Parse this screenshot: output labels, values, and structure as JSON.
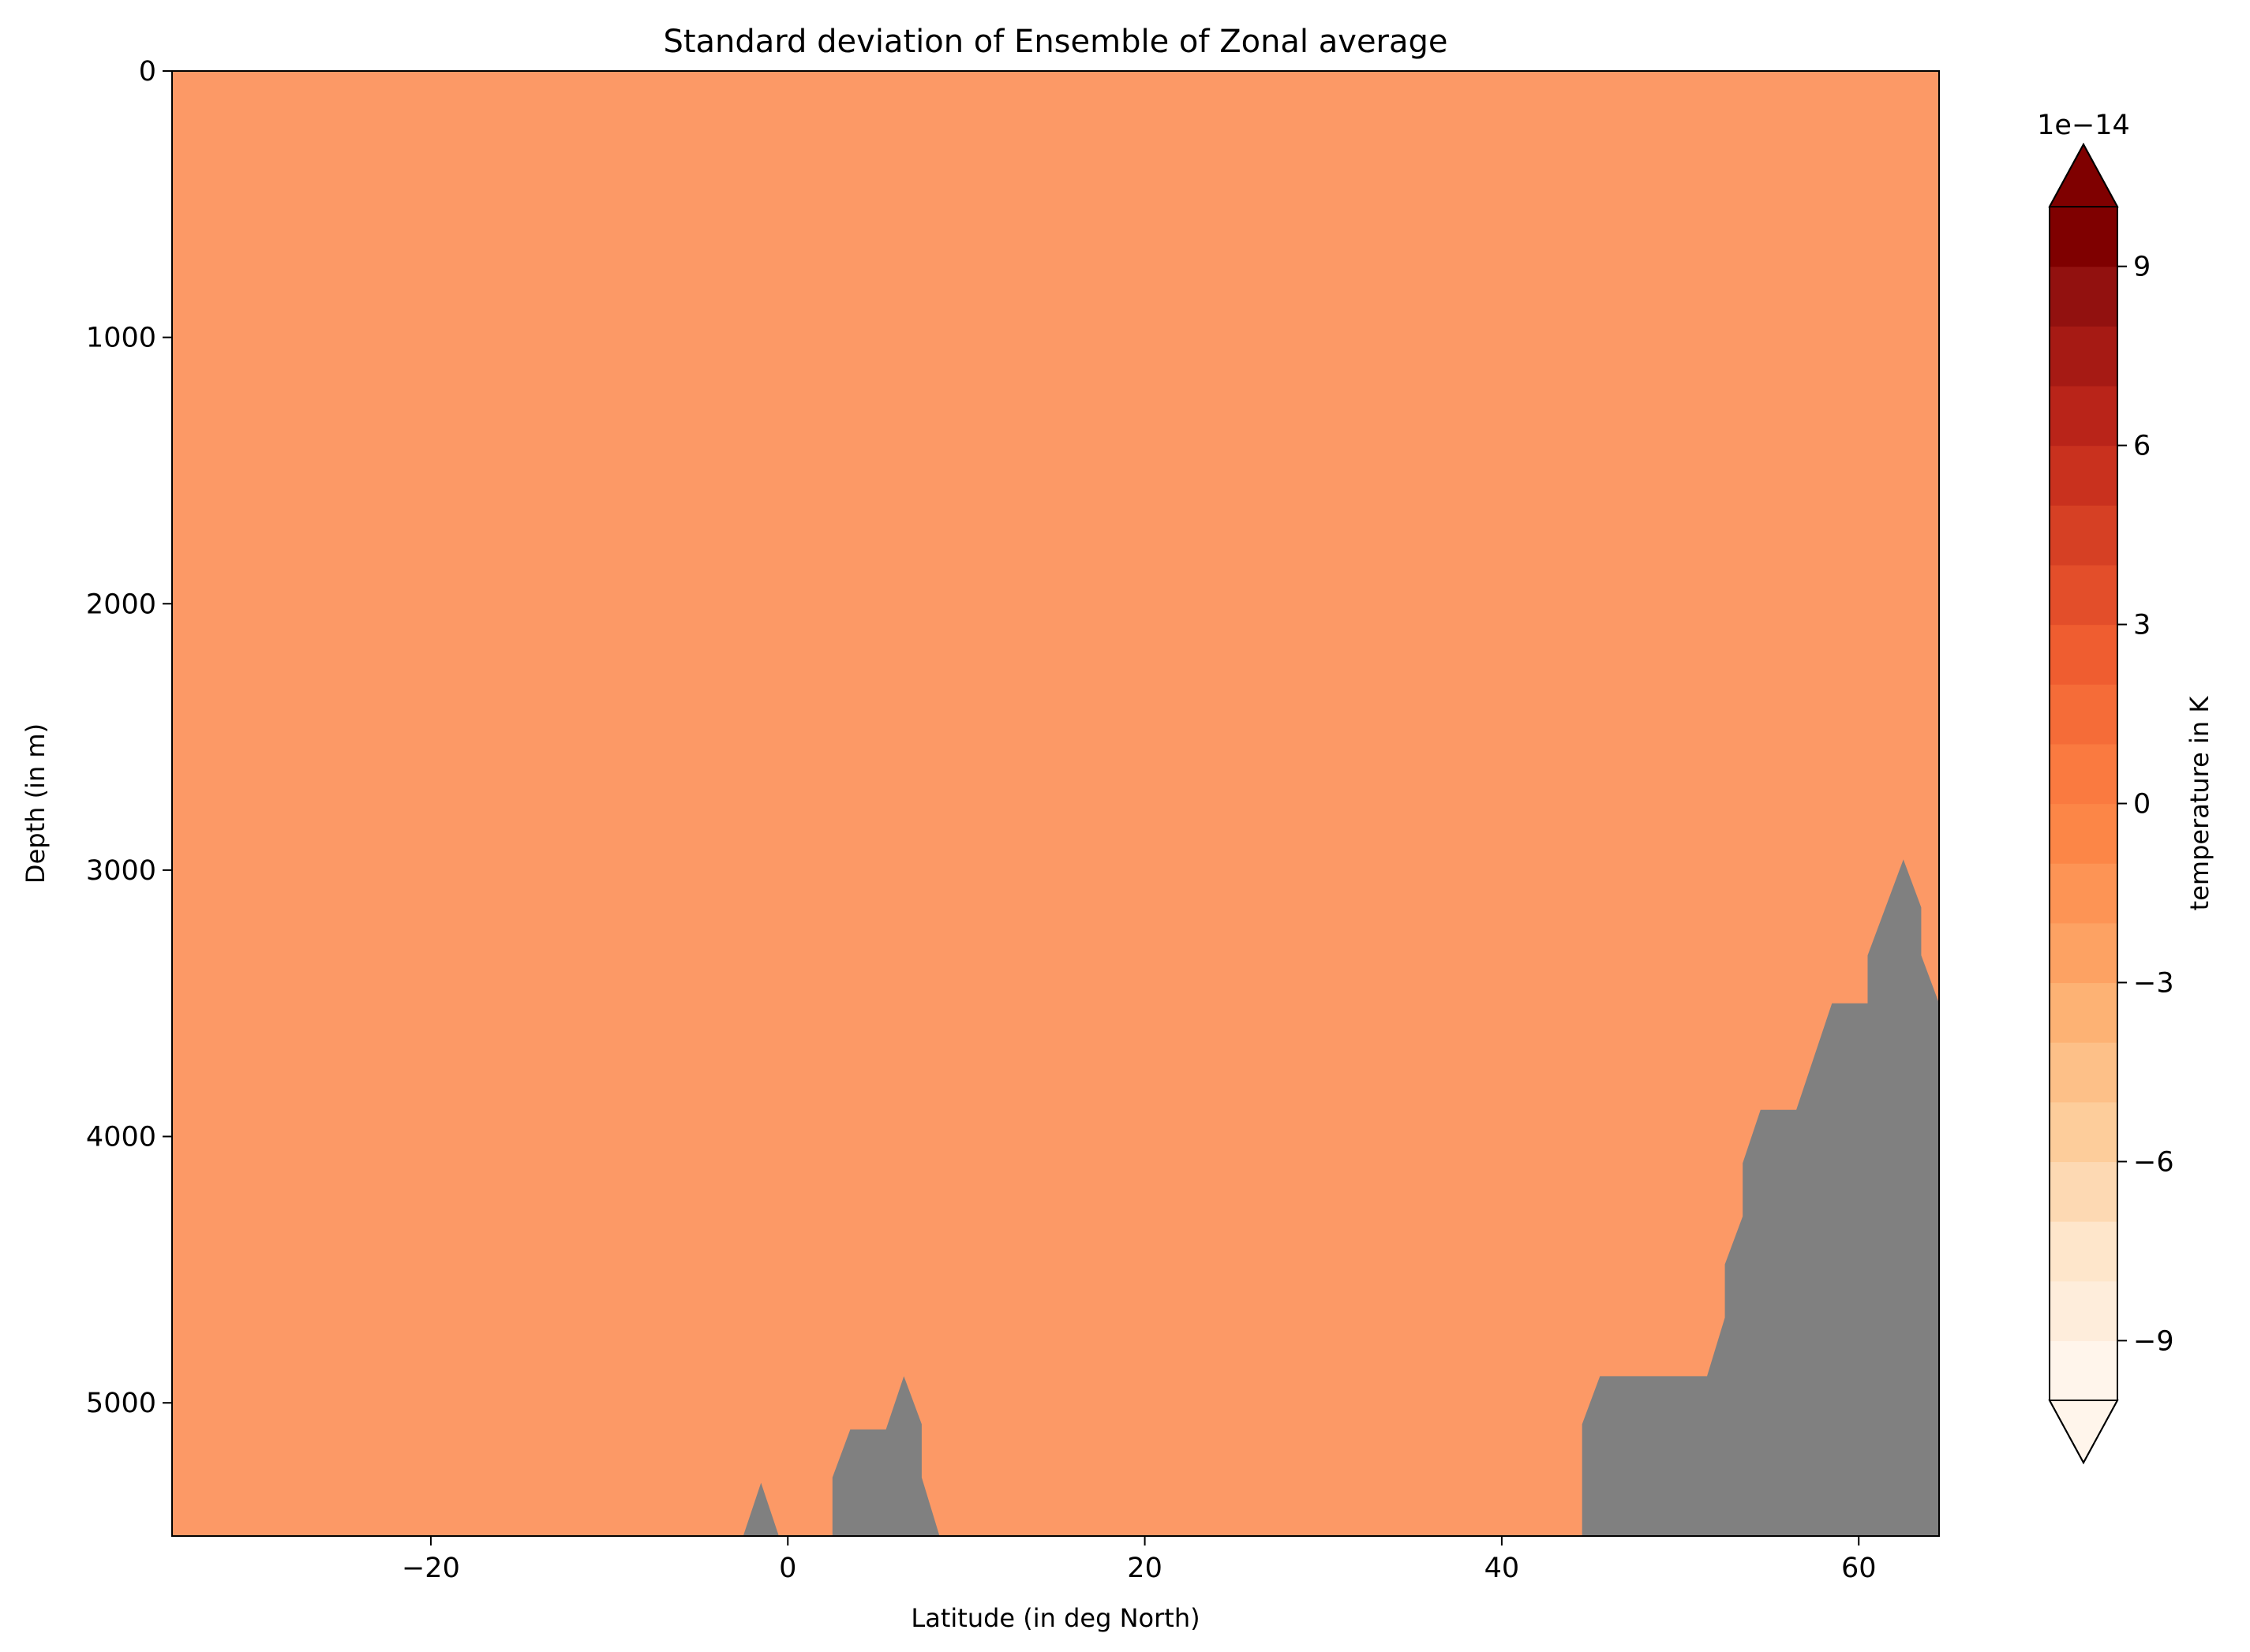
{
  "chart_data": {
    "type": "heatmap",
    "title": "Standard deviation of Ensemble of Zonal average",
    "xlabel": "Latitude (in deg North)",
    "ylabel": "Depth (in m)",
    "xlim": [
      -34.5,
      64.5
    ],
    "ylim": [
      0,
      5500
    ],
    "y_inverted": true,
    "xticks": [
      {
        "value": -20,
        "label": "−20"
      },
      {
        "value": 0,
        "label": "0"
      },
      {
        "value": 20,
        "label": "20"
      },
      {
        "value": 40,
        "label": "40"
      },
      {
        "value": 60,
        "label": "60"
      }
    ],
    "yticks": [
      {
        "value": 0,
        "label": "0"
      },
      {
        "value": 1000,
        "label": "1000"
      },
      {
        "value": 2000,
        "label": "2000"
      },
      {
        "value": 3000,
        "label": "3000"
      },
      {
        "value": 4000,
        "label": "4000"
      },
      {
        "value": 5000,
        "label": "5000"
      }
    ],
    "field_value": 0,
    "field_color": "#fc9966",
    "land_color": "#808080",
    "bathymetry_segments": [
      {
        "name": "ridge-equator",
        "points": [
          [
            -2.5,
            5500
          ],
          [
            -1.5,
            5300
          ],
          [
            -0.5,
            5500
          ]
        ]
      },
      {
        "name": "ridge-tropics",
        "points": [
          [
            2.5,
            5500
          ],
          [
            2.5,
            5280
          ],
          [
            3.5,
            5100
          ],
          [
            5.5,
            5100
          ],
          [
            6.5,
            4900
          ],
          [
            7.5,
            5080
          ],
          [
            7.5,
            5280
          ],
          [
            8.5,
            5500
          ]
        ]
      },
      {
        "name": "north-slope",
        "points": [
          [
            44.5,
            5500
          ],
          [
            44.5,
            5080
          ],
          [
            45.5,
            4900
          ],
          [
            51.5,
            4900
          ],
          [
            52.5,
            4680
          ],
          [
            52.5,
            4480
          ],
          [
            53.5,
            4300
          ],
          [
            53.5,
            4100
          ],
          [
            54.5,
            3900
          ],
          [
            56.5,
            3900
          ],
          [
            58.5,
            3500
          ],
          [
            60.5,
            3500
          ],
          [
            60.5,
            3320
          ],
          [
            62.5,
            2960
          ],
          [
            63.5,
            3140
          ],
          [
            63.5,
            3320
          ],
          [
            64.5,
            3500
          ],
          [
            64.5,
            5500
          ]
        ]
      }
    ],
    "colorbar": {
      "label": "temperature in K",
      "offset_label": "1e−14",
      "extend": "both",
      "vmin": -10,
      "vmax": 10,
      "levels": 20,
      "ticks": [
        {
          "value": -9,
          "label": "−9"
        },
        {
          "value": -6,
          "label": "−6"
        },
        {
          "value": -3,
          "label": "−3"
        },
        {
          "value": 0,
          "label": "0"
        },
        {
          "value": 3,
          "label": "3"
        },
        {
          "value": 6,
          "label": "6"
        },
        {
          "value": 9,
          "label": "9"
        }
      ],
      "colors": [
        "#fff5eb",
        "#feeddb",
        "#fee6cb",
        "#fdd9b3",
        "#fdcd9b",
        "#fdc088",
        "#fdb274",
        "#fda263",
        "#fd9455",
        "#fc8647",
        "#fa7a40",
        "#f56c38",
        "#ef5d30",
        "#e34e2a",
        "#d64024",
        "#c9311e",
        "#b92419",
        "#a61a14",
        "#92110f",
        "#7f0000"
      ],
      "under_color": "#fff5eb",
      "over_color": "#7f0000"
    }
  }
}
